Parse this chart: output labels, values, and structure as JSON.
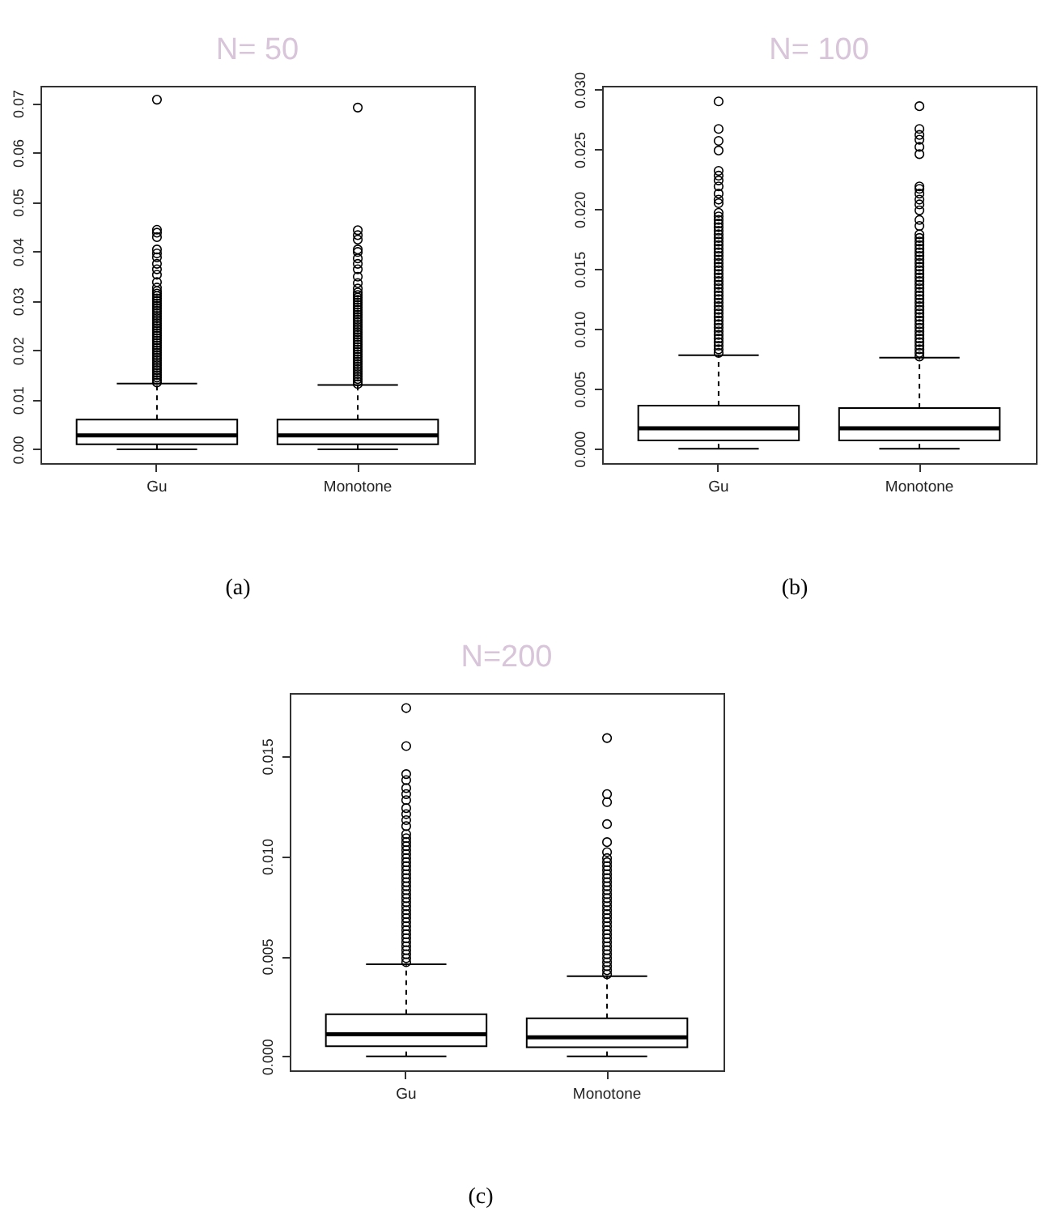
{
  "chart_data": [
    {
      "type": "box",
      "title": "N= 50",
      "annotations": [
        "(a)"
      ],
      "categories": [
        "Gu",
        "Monotone"
      ],
      "ylim": [
        -0.0028,
        0.0735
      ],
      "yticks": [
        {
          "value": 0,
          "label": "0.00"
        },
        0.01,
        0.02,
        0.03,
        0.04,
        0.05,
        0.06,
        0.07
      ],
      "grid": false,
      "boxes": [
        {
          "low": 0,
          "q1": 0.001,
          "median": 0.0028,
          "q3": 0.006,
          "high": 0.0133,
          "outliers": [
            0.0135,
            0.014,
            0.0145,
            0.015,
            0.0155,
            0.016,
            0.0165,
            0.017,
            0.0175,
            0.018,
            0.0185,
            0.019,
            0.0195,
            0.02,
            0.0205,
            0.021,
            0.0215,
            0.022,
            0.0225,
            0.023,
            0.0235,
            0.024,
            0.0245,
            0.025,
            0.0255,
            0.026,
            0.0265,
            0.027,
            0.0275,
            0.028,
            0.0285,
            0.029,
            0.0295,
            0.03,
            0.0305,
            0.031,
            0.0315,
            0.032,
            0.0327,
            0.0338,
            0.0353,
            0.0364,
            0.0375,
            0.0388,
            0.0396,
            0.0404,
            0.0429,
            0.0438,
            0.0444,
            0.0707
          ]
        },
        {
          "low": 0,
          "q1": 0.001,
          "median": 0.0028,
          "q3": 0.006,
          "high": 0.013,
          "outliers": [
            0.0132,
            0.0137,
            0.0142,
            0.0147,
            0.0152,
            0.0157,
            0.0162,
            0.0167,
            0.0172,
            0.0177,
            0.0182,
            0.0187,
            0.0192,
            0.0197,
            0.0202,
            0.0207,
            0.0212,
            0.0217,
            0.0222,
            0.0227,
            0.0232,
            0.0237,
            0.0242,
            0.0247,
            0.0252,
            0.0257,
            0.0262,
            0.0267,
            0.0272,
            0.0277,
            0.0282,
            0.0287,
            0.0292,
            0.0297,
            0.0302,
            0.0307,
            0.0312,
            0.0317,
            0.0325,
            0.0336,
            0.0349,
            0.0364,
            0.0375,
            0.0386,
            0.0399,
            0.0404,
            0.0424,
            0.0433,
            0.0443,
            0.0691
          ]
        }
      ]
    },
    {
      "type": "box",
      "title": "N= 100",
      "annotations": [
        "(b)"
      ],
      "categories": [
        "Gu",
        "Monotone"
      ],
      "ylim": [
        -0.0012,
        0.0303
      ],
      "yticks": [
        {
          "value": 0,
          "label": "0.000"
        },
        0.005,
        {
          "value": 0.01,
          "label": "0.010"
        },
        0.015,
        {
          "value": 0.02,
          "label": "0.020"
        },
        0.025,
        {
          "value": 0.03,
          "label": "0.030"
        }
      ],
      "grid": false,
      "boxes": [
        {
          "low": 0,
          "q1": 0.0007,
          "median": 0.0017,
          "q3": 0.0036,
          "high": 0.0078,
          "outliers": [
            0.008,
            0.0083,
            0.0086,
            0.0089,
            0.0092,
            0.0095,
            0.0098,
            0.0101,
            0.0104,
            0.0107,
            0.011,
            0.0113,
            0.0116,
            0.0119,
            0.0122,
            0.0125,
            0.0128,
            0.0131,
            0.0134,
            0.0137,
            0.014,
            0.0143,
            0.0146,
            0.0149,
            0.0152,
            0.0155,
            0.0158,
            0.0161,
            0.0164,
            0.0167,
            0.017,
            0.0173,
            0.0176,
            0.0179,
            0.0182,
            0.0185,
            0.0188,
            0.0191,
            0.0194,
            0.0197,
            0.0205,
            0.0208,
            0.0213,
            0.0219,
            0.0224,
            0.0228,
            0.0232,
            0.0249,
            0.0257,
            0.0267,
            0.029
          ]
        },
        {
          "low": 0,
          "q1": 0.0007,
          "median": 0.0017,
          "q3": 0.0034,
          "high": 0.0076,
          "outliers": [
            0.0077,
            0.008,
            0.0083,
            0.0086,
            0.0089,
            0.0092,
            0.0095,
            0.0098,
            0.0101,
            0.0104,
            0.0107,
            0.011,
            0.0113,
            0.0116,
            0.0119,
            0.0122,
            0.0125,
            0.0128,
            0.0131,
            0.0134,
            0.0137,
            0.014,
            0.0143,
            0.0146,
            0.0149,
            0.0152,
            0.0155,
            0.0158,
            0.0161,
            0.0164,
            0.0167,
            0.017,
            0.0173,
            0.0176,
            0.0179,
            0.0186,
            0.0191,
            0.0199,
            0.0204,
            0.0208,
            0.0213,
            0.0217,
            0.0219,
            0.0246,
            0.0252,
            0.0258,
            0.0262,
            0.0267,
            0.0286
          ]
        }
      ]
    },
    {
      "type": "box",
      "title": "N=200",
      "annotations": [
        "(c)"
      ],
      "categories": [
        "Gu",
        "Monotone"
      ],
      "ylim": [
        -0.0007,
        0.01815
      ],
      "yticks": [
        {
          "value": 0,
          "label": "0.000"
        },
        0.005,
        {
          "value": 0.01,
          "label": "0.010"
        },
        0.015
      ],
      "grid": false,
      "boxes": [
        {
          "low": 0,
          "q1": 0.0005,
          "median": 0.0011,
          "q3": 0.0021,
          "high": 0.0046,
          "outliers": [
            0.0047,
            0.0049,
            0.0051,
            0.0053,
            0.0055,
            0.0057,
            0.0059,
            0.0061,
            0.0063,
            0.0065,
            0.0067,
            0.0069,
            0.0071,
            0.0073,
            0.0075,
            0.0077,
            0.0079,
            0.0081,
            0.0083,
            0.0085,
            0.0087,
            0.0089,
            0.0091,
            0.0093,
            0.0095,
            0.0097,
            0.0099,
            0.0101,
            0.0103,
            0.0105,
            0.0107,
            0.0109,
            0.0111,
            0.0115,
            0.0118,
            0.0121,
            0.0124,
            0.0128,
            0.0131,
            0.0134,
            0.0138,
            0.0141,
            0.0155,
            0.0174
          ]
        },
        {
          "low": 0,
          "q1": 0.00045,
          "median": 0.00095,
          "q3": 0.0019,
          "high": 0.004,
          "outliers": [
            0.0041,
            0.0043,
            0.0045,
            0.0047,
            0.0049,
            0.0051,
            0.0053,
            0.0055,
            0.0057,
            0.0059,
            0.0061,
            0.0063,
            0.0065,
            0.0067,
            0.0069,
            0.0071,
            0.0073,
            0.0075,
            0.0077,
            0.0079,
            0.0081,
            0.0083,
            0.0085,
            0.0087,
            0.0089,
            0.0091,
            0.0093,
            0.0095,
            0.0097,
            0.0099,
            0.0102,
            0.0107,
            0.0116,
            0.0127,
            0.0131,
            0.0159
          ]
        }
      ]
    }
  ]
}
